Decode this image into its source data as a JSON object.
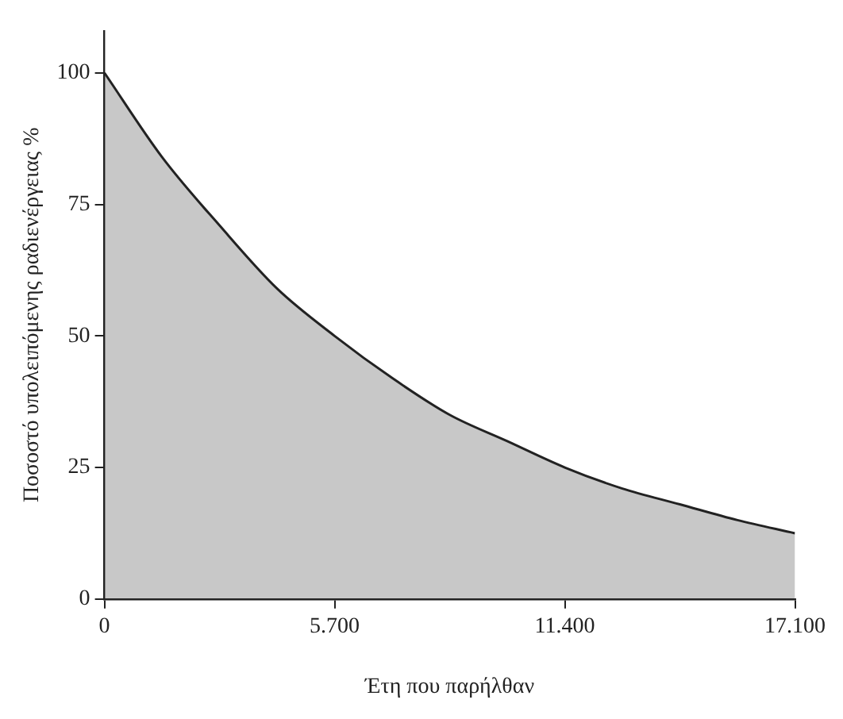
{
  "chart_data": {
    "type": "area",
    "xlabel": "Έτη που παρήλθαν",
    "ylabel": "Ποσοστό υπολειπόμενης ραδιενέργειας %",
    "x": [
      0,
      1425,
      2850,
      4275,
      5700,
      7125,
      8550,
      9975,
      11400,
      12825,
      14250,
      15675,
      17100
    ],
    "series": [
      {
        "color": "#222222",
        "values": [
          100,
          84,
          71,
          59,
          50,
          42,
          35,
          30,
          25,
          21,
          18,
          15,
          12.5
        ]
      }
    ],
    "xlim": [
      0,
      17100
    ],
    "ylim": [
      0,
      108
    ],
    "xticks": [
      0,
      {
        "value": 5700,
        "label": "5.700"
      },
      {
        "value": 11400,
        "label": "11.400"
      },
      {
        "value": 17100,
        "label": "17.100"
      }
    ],
    "yticks": [
      0,
      25,
      50,
      75,
      100
    ],
    "grid": false,
    "legend": false,
    "marker": "none",
    "line_style": "solid"
  }
}
